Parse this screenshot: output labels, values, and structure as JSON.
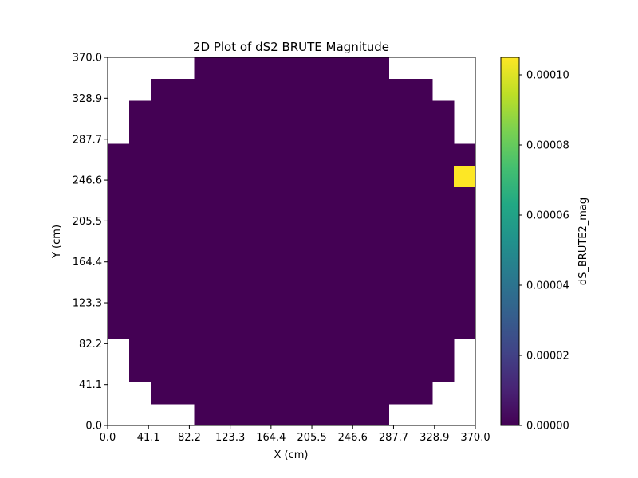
{
  "chart_data": {
    "type": "heatmap",
    "title": "2D Plot of dS2 BRUTE Magnitude",
    "xlabel": "X (cm)",
    "ylabel": "Y (cm)",
    "xlim": [
      0.0,
      370.0
    ],
    "ylim": [
      0.0,
      370.0
    ],
    "x_ticks": [
      "0.0",
      "41.1",
      "82.2",
      "123.3",
      "164.4",
      "205.5",
      "246.6",
      "287.7",
      "328.9",
      "370.0"
    ],
    "y_ticks": [
      "0.0",
      "41.1",
      "82.2",
      "123.3",
      "164.4",
      "205.5",
      "246.6",
      "287.7",
      "328.9",
      "370.0"
    ],
    "grid": false,
    "colormap": "viridis",
    "colorbar": {
      "label": "dS_BRUTE2_mag",
      "range": [
        0.0,
        0.000105
      ],
      "ticks": [
        "0.00000",
        "0.00002",
        "0.00004",
        "0.00006",
        "0.00008",
        "0.00010"
      ]
    },
    "cell_size_cm": 21.765,
    "rows_note": "Rows listed from y=0 (bottom) upward; each row gives [xmin, xmax] extent in cm.",
    "row_extents": [
      [
        87.06,
        282.94
      ],
      [
        43.53,
        326.47
      ],
      [
        21.76,
        348.24
      ],
      [
        21.76,
        348.24
      ],
      [
        0.0,
        370.0
      ],
      [
        0.0,
        370.0
      ],
      [
        0.0,
        370.0
      ],
      [
        0.0,
        370.0
      ],
      [
        0.0,
        370.0
      ],
      [
        0.0,
        370.0
      ],
      [
        0.0,
        370.0
      ],
      [
        0.0,
        370.0
      ],
      [
        0.0,
        370.0
      ],
      [
        21.76,
        348.24
      ],
      [
        21.76,
        348.24
      ],
      [
        43.53,
        326.47
      ],
      [
        87.06,
        282.94
      ]
    ],
    "background_value": 0.0,
    "hot_cells": [
      {
        "x_range": [
          348.24,
          370.0
        ],
        "y_range": [
          239.41,
          261.18
        ],
        "value": 0.000105
      }
    ]
  }
}
